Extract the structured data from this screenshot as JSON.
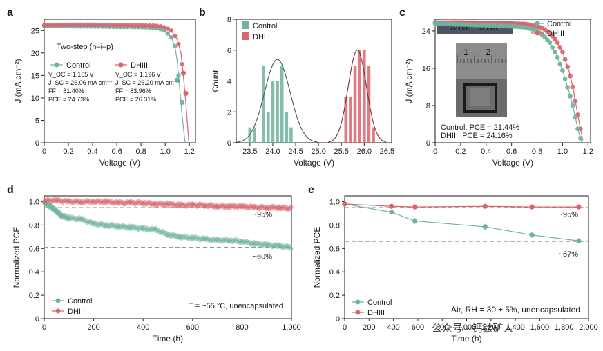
{
  "colors": {
    "control": "#6fb39c",
    "dhiii": "#d9646e",
    "axis": "#1a1a1a",
    "ref": "#888888"
  },
  "watermark": "公众号 · 钙钛矿人",
  "chart_data": [
    {
      "panel": "a",
      "type": "line",
      "xlabel": "Voltage (V)",
      "ylabel": "J (mA cm⁻²)",
      "xlim": [
        0,
        1.25
      ],
      "ylim": [
        0,
        27.5
      ],
      "xticks": [
        0,
        0.2,
        0.4,
        0.6,
        0.8,
        1.0,
        1.2
      ],
      "xtick_labels": [
        "0",
        "0.2",
        "0.4",
        "0.6",
        "0.8",
        "1.0",
        "1.2"
      ],
      "yticks": [
        0,
        5,
        10,
        15,
        20,
        25
      ],
      "ytick_labels": [
        "0",
        "5",
        "10",
        "15",
        "20",
        "25"
      ],
      "annotation": "Two-step (n–i–p)",
      "series": [
        {
          "name": "Control",
          "x": [
            0,
            0.05,
            0.1,
            0.2,
            0.3,
            0.4,
            0.5,
            0.6,
            0.7,
            0.8,
            0.9,
            0.95,
            1.0,
            1.05,
            1.08,
            1.1,
            1.12,
            1.14,
            1.16,
            1.165
          ],
          "y": [
            26.06,
            26.0,
            26.0,
            25.95,
            25.9,
            25.9,
            25.85,
            25.8,
            25.8,
            25.75,
            25.6,
            25.4,
            24.9,
            23.5,
            21.5,
            18.0,
            12.0,
            6.0,
            1.0,
            0
          ],
          "metrics": [
            "V_OC = 1.165 V",
            "J_SC = 26.06 mA cm⁻²",
            "FF = 81.40%",
            "PCE = 24.73%"
          ]
        },
        {
          "name": "DHIII",
          "x": [
            0,
            0.05,
            0.1,
            0.2,
            0.3,
            0.4,
            0.5,
            0.6,
            0.7,
            0.8,
            0.9,
            0.95,
            1.0,
            1.05,
            1.1,
            1.13,
            1.15,
            1.17,
            1.19,
            1.196
          ],
          "y": [
            26.2,
            26.2,
            26.25,
            26.3,
            26.3,
            26.3,
            26.25,
            26.25,
            26.2,
            26.2,
            26.1,
            26.0,
            25.7,
            25.0,
            23.0,
            20.0,
            15.0,
            9.0,
            2.0,
            0
          ],
          "metrics": [
            "V_OC = 1.196 V",
            "J_SC = 26.20 mA cm⁻²",
            "FF = 83.96%",
            "PCE = 26.31%"
          ]
        }
      ]
    },
    {
      "panel": "b",
      "type": "bar",
      "xlabel": "Voltage (V)",
      "ylabel": "Count",
      "xlim": [
        23.2,
        26.6
      ],
      "ylim": [
        0,
        8
      ],
      "xticks": [
        23.5,
        24.0,
        24.5,
        25.0,
        25.5,
        26.0,
        26.5
      ],
      "xtick_labels": [
        "23.5",
        "24.0",
        "24.5",
        "25.0",
        "25.5",
        "26.0",
        "26.5"
      ],
      "yticks": [
        0,
        2,
        4,
        6,
        8
      ],
      "ytick_labels": [
        "0",
        "2",
        "4",
        "6",
        "8"
      ],
      "bin_width": 0.1,
      "series": [
        {
          "name": "Control",
          "bins": [
            23.5,
            23.6,
            23.8,
            23.9,
            24.0,
            24.1,
            24.2,
            24.3,
            24.4
          ],
          "values": [
            1,
            1,
            5,
            2,
            4,
            4,
            5,
            2,
            1
          ],
          "fit": {
            "mean": 24.1,
            "sd": 0.28,
            "peak": 5.4
          }
        },
        {
          "name": "DHIII",
          "bins": [
            25.6,
            25.7,
            25.8,
            25.9,
            26.0,
            26.1,
            26.2
          ],
          "values": [
            3,
            3,
            5,
            6,
            6,
            5,
            1
          ],
          "fit": {
            "mean": 25.85,
            "sd": 0.2,
            "peak": 6.0
          }
        }
      ]
    },
    {
      "panel": "c",
      "type": "line",
      "xlabel": "Voltage (V)",
      "ylabel": "J (mA cm⁻²)",
      "xlim": [
        0,
        1.22
      ],
      "ylim": [
        0,
        26.5
      ],
      "xticks": [
        0,
        0.2,
        0.4,
        0.6,
        0.8,
        1.0,
        1.2
      ],
      "xtick_labels": [
        "0",
        "0.2",
        "0.4",
        "0.6",
        "0.8",
        "1.0",
        "1.2"
      ],
      "yticks": [
        0,
        8,
        16,
        24
      ],
      "ytick_labels": [
        "0",
        "8",
        "16",
        "24"
      ],
      "inset_label": "Area: 1.0 cm²",
      "inset_ruler": [
        "1",
        "2"
      ],
      "series": [
        {
          "name": "Control",
          "label": "Control: PCE = 21.44%",
          "x": [
            0,
            0.1,
            0.2,
            0.3,
            0.4,
            0.5,
            0.6,
            0.7,
            0.75,
            0.8,
            0.85,
            0.9,
            0.95,
            1.0,
            1.05,
            1.08,
            1.1,
            1.12,
            1.14,
            1.15
          ],
          "y": [
            25.6,
            25.5,
            25.4,
            25.3,
            25.2,
            25.1,
            25.0,
            24.8,
            24.5,
            24.0,
            23.0,
            21.5,
            19.0,
            15.5,
            11.0,
            8.0,
            5.5,
            3.0,
            1.0,
            0
          ]
        },
        {
          "name": "DHIII",
          "label": "DHIII: PCE = 24.16%",
          "x": [
            0,
            0.1,
            0.2,
            0.3,
            0.4,
            0.5,
            0.6,
            0.7,
            0.75,
            0.8,
            0.85,
            0.9,
            0.95,
            1.0,
            1.05,
            1.08,
            1.1,
            1.12,
            1.14,
            1.16
          ],
          "y": [
            25.8,
            25.8,
            25.8,
            25.75,
            25.7,
            25.7,
            25.6,
            25.5,
            25.3,
            25.0,
            24.5,
            23.5,
            22.0,
            19.5,
            15.5,
            12.0,
            9.0,
            6.0,
            3.0,
            0.5
          ]
        }
      ]
    },
    {
      "panel": "d",
      "type": "scatter",
      "xlabel": "Time (h)",
      "ylabel": "Normalized PCE",
      "xlim": [
        0,
        1000
      ],
      "ylim": [
        0,
        1.05
      ],
      "xticks": [
        0,
        200,
        400,
        600,
        800,
        1000
      ],
      "xtick_labels": [
        "0",
        "200",
        "400",
        "600",
        "800",
        "1,000"
      ],
      "yticks": [
        0,
        0.2,
        0.4,
        0.6,
        0.8,
        1.0
      ],
      "ytick_labels": [
        "0",
        "0.2",
        "0.4",
        "0.6",
        "0.8",
        "1.0"
      ],
      "condition": "T = ~55 °C, unencapsulated",
      "ref_lines": [
        0.95,
        0.61
      ],
      "annotations": [
        "~95%",
        "~60%"
      ],
      "series": [
        {
          "name": "Control",
          "x": [
            0,
            10,
            30,
            50,
            70,
            100,
            150,
            200,
            250,
            300,
            350,
            400,
            450,
            500,
            550,
            600,
            650,
            700,
            750,
            800,
            850,
            900,
            950,
            1000
          ],
          "y": [
            1.0,
            0.98,
            0.95,
            0.92,
            0.88,
            0.86,
            0.85,
            0.81,
            0.8,
            0.79,
            0.78,
            0.77,
            0.76,
            0.72,
            0.7,
            0.69,
            0.68,
            0.67,
            0.67,
            0.66,
            0.64,
            0.63,
            0.62,
            0.61
          ]
        },
        {
          "name": "DHIII",
          "x": [
            0,
            50,
            100,
            150,
            200,
            250,
            300,
            350,
            400,
            450,
            500,
            550,
            600,
            650,
            700,
            750,
            800,
            850,
            900,
            950,
            1000
          ],
          "y": [
            1.01,
            1.01,
            1.0,
            1.0,
            1.0,
            1.0,
            0.99,
            0.99,
            0.99,
            0.98,
            0.98,
            0.97,
            0.97,
            0.97,
            0.96,
            0.96,
            0.96,
            0.95,
            0.95,
            0.95,
            0.94
          ]
        }
      ]
    },
    {
      "panel": "e",
      "type": "line",
      "xlabel": "Time (h)",
      "ylabel": "Normalized PCE",
      "xlim": [
        0,
        2000
      ],
      "ylim": [
        0,
        1.05
      ],
      "xticks": [
        0,
        200,
        400,
        600,
        800,
        1000,
        1200,
        1400,
        1600,
        1800,
        2000
      ],
      "xtick_labels": [
        "0",
        "200",
        "400",
        "600",
        "800",
        "1,000",
        "1,200",
        "1,400",
        "1,600",
        "1,800",
        "2,000"
      ],
      "yticks": [
        0,
        0.2,
        0.4,
        0.6,
        0.8,
        1.0
      ],
      "ytick_labels": [
        "0",
        "0.2",
        "0.4",
        "0.6",
        "0.8",
        "1.0"
      ],
      "condition": "Air, RH = 30 ± 5%, unencapsulated",
      "ref_lines": [
        0.95,
        0.66
      ],
      "annotations": [
        "~95%",
        "~67%"
      ],
      "series": [
        {
          "name": "Control",
          "x": [
            0,
            384,
            576,
            1152,
            1536,
            1920
          ],
          "y": [
            0.98,
            0.91,
            0.835,
            0.785,
            0.715,
            0.665
          ],
          "err": [
            0,
            0,
            0.025,
            0.025,
            0,
            0.02
          ]
        },
        {
          "name": "DHIII",
          "x": [
            0,
            384,
            576,
            1152,
            1536,
            1920
          ],
          "y": [
            0.98,
            0.96,
            0.955,
            0.96,
            0.955,
            0.955
          ],
          "err": [
            0,
            0,
            0,
            0,
            0,
            0
          ]
        }
      ]
    }
  ]
}
